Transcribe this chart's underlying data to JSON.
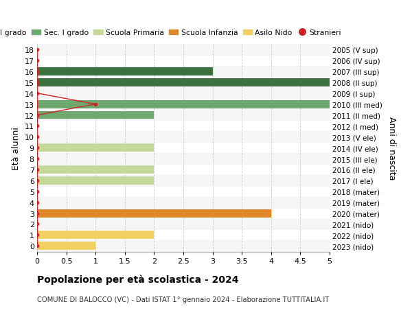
{
  "title": "Popolazione per età scolastica - 2024",
  "subtitle": "COMUNE DI BALOCCO (VC) - Dati ISTAT 1° gennaio 2024 - Elaborazione TUTTITALIA.IT",
  "ylabel_left": "Età alunni",
  "ylabel_right": "Anni di nascita",
  "xlim": [
    0,
    5.0
  ],
  "xticks": [
    0,
    0.5,
    1.0,
    1.5,
    2.0,
    2.5,
    3.0,
    3.5,
    4.0,
    4.5,
    5.0
  ],
  "ages": [
    0,
    1,
    2,
    3,
    4,
    5,
    6,
    7,
    8,
    9,
    10,
    11,
    12,
    13,
    14,
    15,
    16,
    17,
    18
  ],
  "right_labels": [
    "2023 (nido)",
    "2022 (nido)",
    "2021 (nido)",
    "2020 (mater)",
    "2019 (mater)",
    "2018 (mater)",
    "2017 (I ele)",
    "2016 (II ele)",
    "2015 (III ele)",
    "2014 (IV ele)",
    "2013 (V ele)",
    "2012 (I med)",
    "2011 (II med)",
    "2010 (III med)",
    "2009 (I sup)",
    "2008 (II sup)",
    "2007 (III sup)",
    "2006 (IV sup)",
    "2005 (V sup)"
  ],
  "bar_values": [
    1,
    2,
    0,
    4,
    0,
    0,
    2,
    2,
    0,
    2,
    0,
    0,
    2,
    5,
    0,
    5,
    3,
    0,
    0
  ],
  "bar_colors": [
    "#f0d060",
    "#f0d060",
    "#f0d060",
    "#e0872a",
    "#e0872a",
    "#e0872a",
    "#c5d99a",
    "#c5d99a",
    "#c5d99a",
    "#c5d99a",
    "#c5d99a",
    "#6fa86f",
    "#6fa86f",
    "#6fa86f",
    "#3d7040",
    "#3d7040",
    "#3d7040",
    "#3d7040",
    "#3d7040"
  ],
  "stranieri_x": [
    0,
    0,
    0,
    0,
    0,
    0,
    0,
    0,
    0,
    0,
    0,
    0,
    0,
    1,
    0,
    0,
    0,
    0,
    0
  ],
  "legend_labels": [
    "Sec. II grado",
    "Sec. I grado",
    "Scuola Primaria",
    "Scuola Infanzia",
    "Asilo Nido",
    "Stranieri"
  ],
  "legend_colors": [
    "#3d7040",
    "#6fa86f",
    "#c5d99a",
    "#e0872a",
    "#f0d060",
    "#cc2222"
  ],
  "stranieri_color": "#cc2222",
  "background_color": "#ffffff",
  "grid_color": "#cccccc",
  "bar_height": 0.75
}
